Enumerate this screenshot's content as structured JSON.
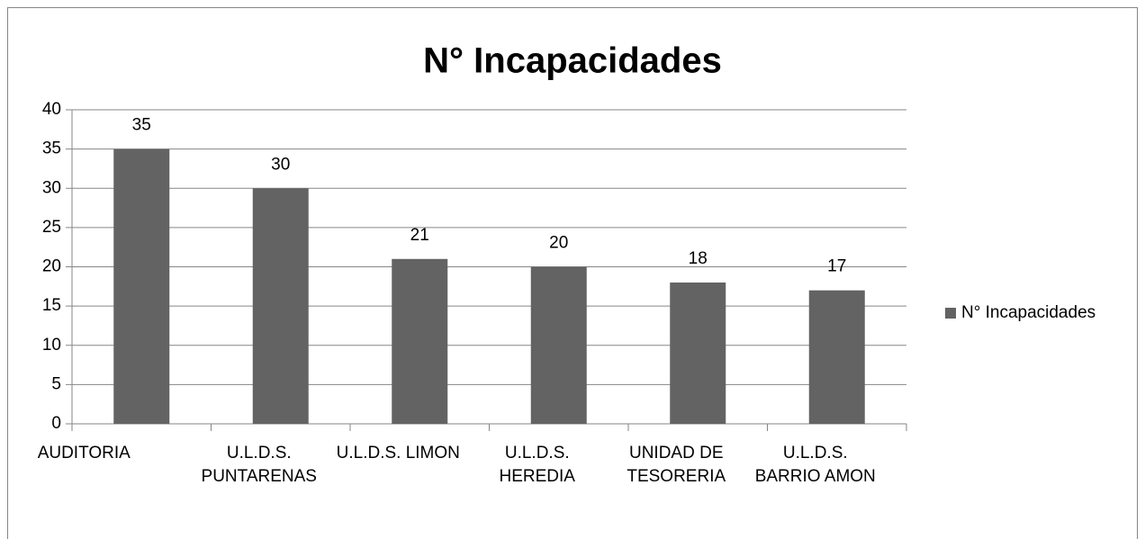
{
  "chart_data": {
    "type": "bar",
    "title": "N° Incapacidades",
    "categories": [
      "AUDITORIA",
      "U.L.D.S. PUNTARENAS",
      "U.L.D.S. LIMON",
      "U.L.D.S. HEREDIA",
      "UNIDAD DE TESORERIA",
      "U.L.D.S. BARRIO AMON"
    ],
    "series": [
      {
        "name": "N° Incapacidades",
        "color": "#636363",
        "values": [
          35,
          30,
          21,
          20,
          18,
          17
        ]
      }
    ],
    "ylim": [
      0,
      40
    ],
    "yticks": [
      0,
      5,
      10,
      15,
      20,
      25,
      30,
      35,
      40
    ],
    "grid": true,
    "legend": "right"
  }
}
